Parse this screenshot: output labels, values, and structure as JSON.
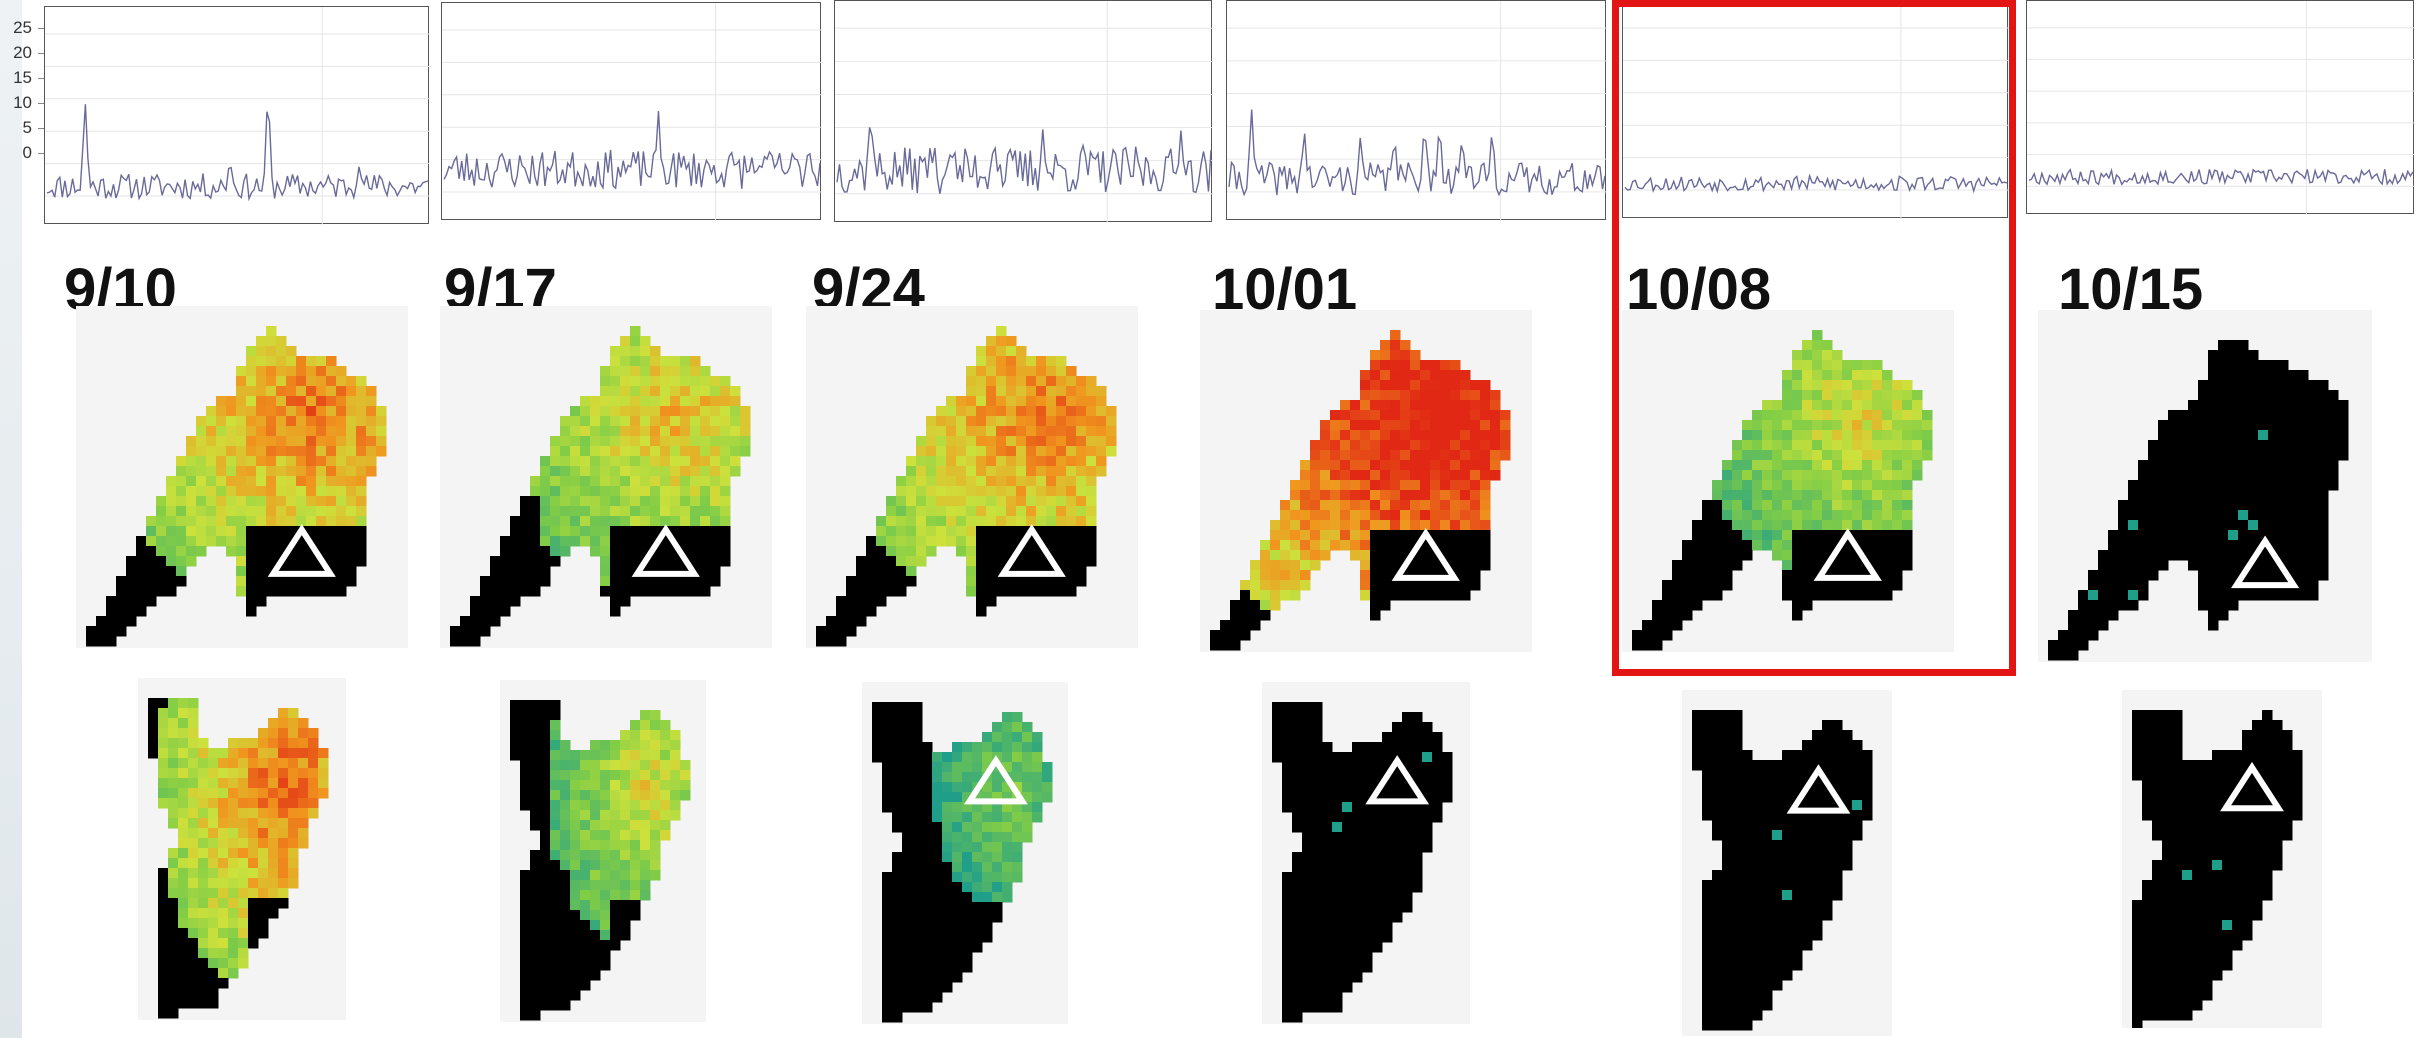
{
  "y_axis": {
    "ticks": [
      "25",
      "20",
      "15",
      "10",
      "5",
      "0"
    ]
  },
  "panels": [
    {
      "date": "9/10",
      "highlight": false,
      "intensity": 0.55,
      "inset_intensity": 0.6
    },
    {
      "date": "9/17",
      "highlight": false,
      "intensity": 0.4,
      "inset_intensity": 0.3
    },
    {
      "date": "9/24",
      "highlight": false,
      "intensity": 0.55,
      "inset_intensity": 0.05
    },
    {
      "date": "10/01",
      "highlight": false,
      "intensity": 0.85,
      "inset_intensity": 0.0
    },
    {
      "date": "10/08",
      "highlight": true,
      "intensity": 0.3,
      "inset_intensity": 0.0
    },
    {
      "date": "10/15",
      "highlight": false,
      "intensity": 0.02,
      "inset_intensity": 0.0
    }
  ],
  "colors": {
    "line": "#6a6a9a",
    "highlight": "#e31414",
    "land": "#000000",
    "scale_low": "#1f9e8a",
    "scale_mid": "#c9e04a",
    "scale_high": "#e52b14"
  },
  "chart_data": [
    {
      "type": "line",
      "ylim": [
        -2,
        27
      ],
      "peaks": [
        [
          0.1,
          15
        ],
        [
          0.58,
          17
        ],
        [
          0.48,
          6
        ],
        [
          0.82,
          5
        ]
      ],
      "base": 1.5,
      "noise": 2.0,
      "seed": 11
    },
    {
      "type": "line",
      "ylim": [
        -2,
        27
      ],
      "peaks": [
        [
          0.57,
          13
        ],
        [
          0.85,
          6
        ],
        [
          0.97,
          8
        ]
      ],
      "base": 3.5,
      "noise": 3.0,
      "seed": 23
    },
    {
      "type": "line",
      "ylim": [
        -2,
        27
      ],
      "peaks": [
        [
          0.09,
          13
        ],
        [
          0.25,
          8
        ],
        [
          0.3,
          7
        ],
        [
          0.42,
          9
        ],
        [
          0.55,
          10
        ],
        [
          0.66,
          9
        ],
        [
          0.8,
          8
        ],
        [
          0.92,
          10
        ]
      ],
      "base": 3.5,
      "noise": 3.5,
      "seed": 37
    },
    {
      "type": "line",
      "ylim": [
        -2,
        27
      ],
      "peaks": [
        [
          0.06,
          13
        ],
        [
          0.2,
          10
        ],
        [
          0.35,
          9
        ],
        [
          0.44,
          9
        ],
        [
          0.52,
          11
        ],
        [
          0.56,
          11
        ],
        [
          0.62,
          9
        ],
        [
          0.7,
          10
        ]
      ],
      "base": 2.0,
      "noise": 2.5,
      "seed": 41
    },
    {
      "type": "line",
      "ylim": [
        -2,
        27
      ],
      "peaks": [],
      "base": 1.0,
      "noise": 1.2,
      "seed": 53
    },
    {
      "type": "line",
      "ylim": [
        -2,
        27
      ],
      "peaks": [
        [
          0.2,
          1.5
        ]
      ],
      "base": 1.5,
      "noise": 1.2,
      "seed": 67
    }
  ]
}
